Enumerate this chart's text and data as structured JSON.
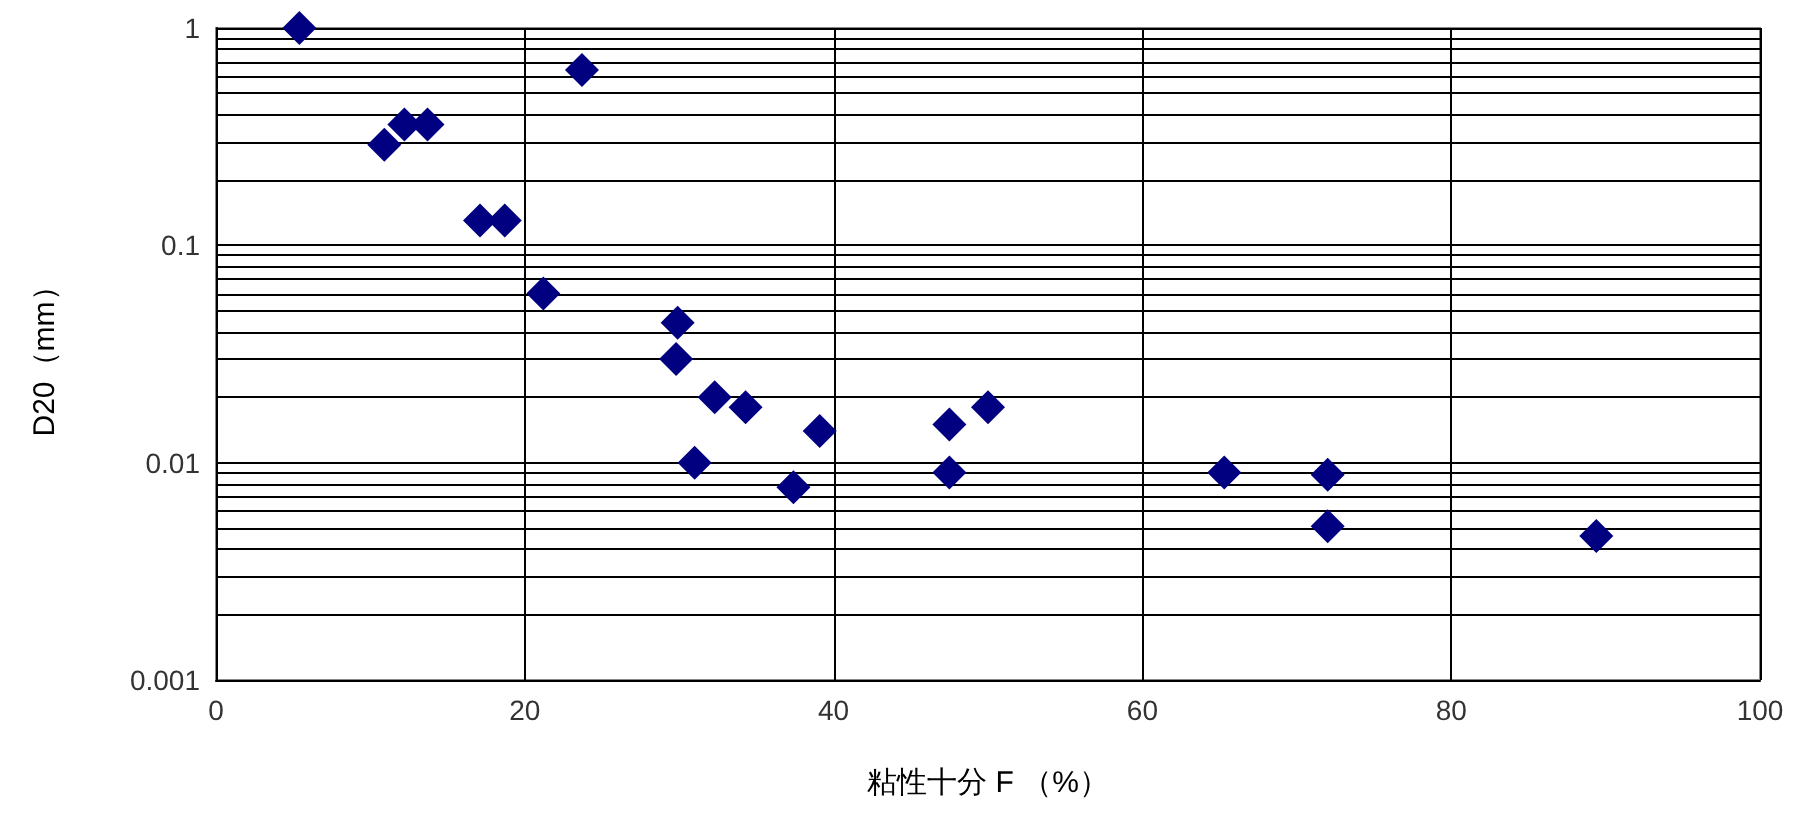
{
  "chart_data": {
    "type": "scatter",
    "xlabel": "粘性十分 F （%）",
    "ylabel": "D20（mm）",
    "log": "y",
    "grid": true,
    "marker": "diamond",
    "xlim": [
      0,
      100
    ],
    "xticks": [
      0,
      20,
      40,
      60,
      80,
      100
    ],
    "ylim": [
      0.001,
      1
    ],
    "yticks": [
      0.001,
      0.01,
      0.1,
      1
    ],
    "series": [
      {
        "color": "#000080",
        "x": [
          5.4,
          10.9,
          12.2,
          13.7,
          17.1,
          18.7,
          23.7,
          21.2,
          29.9,
          29.8,
          32.3,
          34.3,
          31.0,
          37.4,
          39.1,
          47.5,
          50.0,
          47.5,
          65.3,
          72.0,
          72.0,
          89.4
        ],
        "values": [
          1.0,
          0.29,
          0.36,
          0.36,
          0.13,
          0.13,
          0.64,
          0.06,
          0.044,
          0.03,
          0.02,
          0.018,
          0.01,
          0.0077,
          0.014,
          0.015,
          0.018,
          0.009,
          0.009,
          0.0088,
          0.0051,
          0.0046
        ]
      }
    ]
  }
}
